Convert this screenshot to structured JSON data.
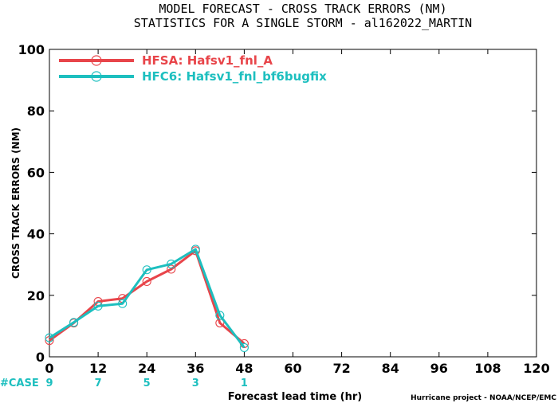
{
  "title_line1": "MODEL FORECAST - CROSS TRACK ERRORS (NM)",
  "title_line2": "STATISTICS FOR A SINGLE STORM - al162022_MARTIN",
  "credit": "Hurricane project - NOAA/NCEP/EMC",
  "case_label": "#CASE",
  "colors": {
    "hfsa": "#e8454a",
    "hfc6": "#1dbfbf",
    "axis": "#000000"
  },
  "chart_data": {
    "type": "line",
    "xlabel": "Forecast lead time (hr)",
    "ylabel": "CROSS TRACK ERRORS (NM)",
    "xlim": [
      0,
      120
    ],
    "ylim": [
      0,
      100
    ],
    "xticks": [
      0,
      12,
      24,
      36,
      48,
      60,
      72,
      84,
      96,
      108,
      120
    ],
    "yticks": [
      0,
      20,
      40,
      60,
      80,
      100
    ],
    "case_counts": [
      {
        "x": 0,
        "n": "9"
      },
      {
        "x": 12,
        "n": "7"
      },
      {
        "x": 24,
        "n": "5"
      },
      {
        "x": 36,
        "n": "3"
      },
      {
        "x": 48,
        "n": "1"
      }
    ],
    "series": [
      {
        "name": "HFSA: Hafsv1_fnl_A",
        "key": "hfsa",
        "x": [
          0,
          6,
          12,
          18,
          24,
          30,
          36,
          42,
          48
        ],
        "y": [
          5.3,
          11.0,
          18.0,
          19.0,
          24.5,
          28.5,
          34.5,
          11.0,
          4.3
        ]
      },
      {
        "name": "HFC6: Hafsv1_fnl_bf6bugfix",
        "key": "hfc6",
        "x": [
          0,
          6,
          12,
          18,
          24,
          30,
          36,
          42,
          48
        ],
        "y": [
          6.2,
          11.2,
          16.5,
          17.3,
          28.3,
          30.2,
          35.0,
          13.5,
          3.0
        ]
      }
    ],
    "grid": false,
    "legend_position": "top-left"
  }
}
